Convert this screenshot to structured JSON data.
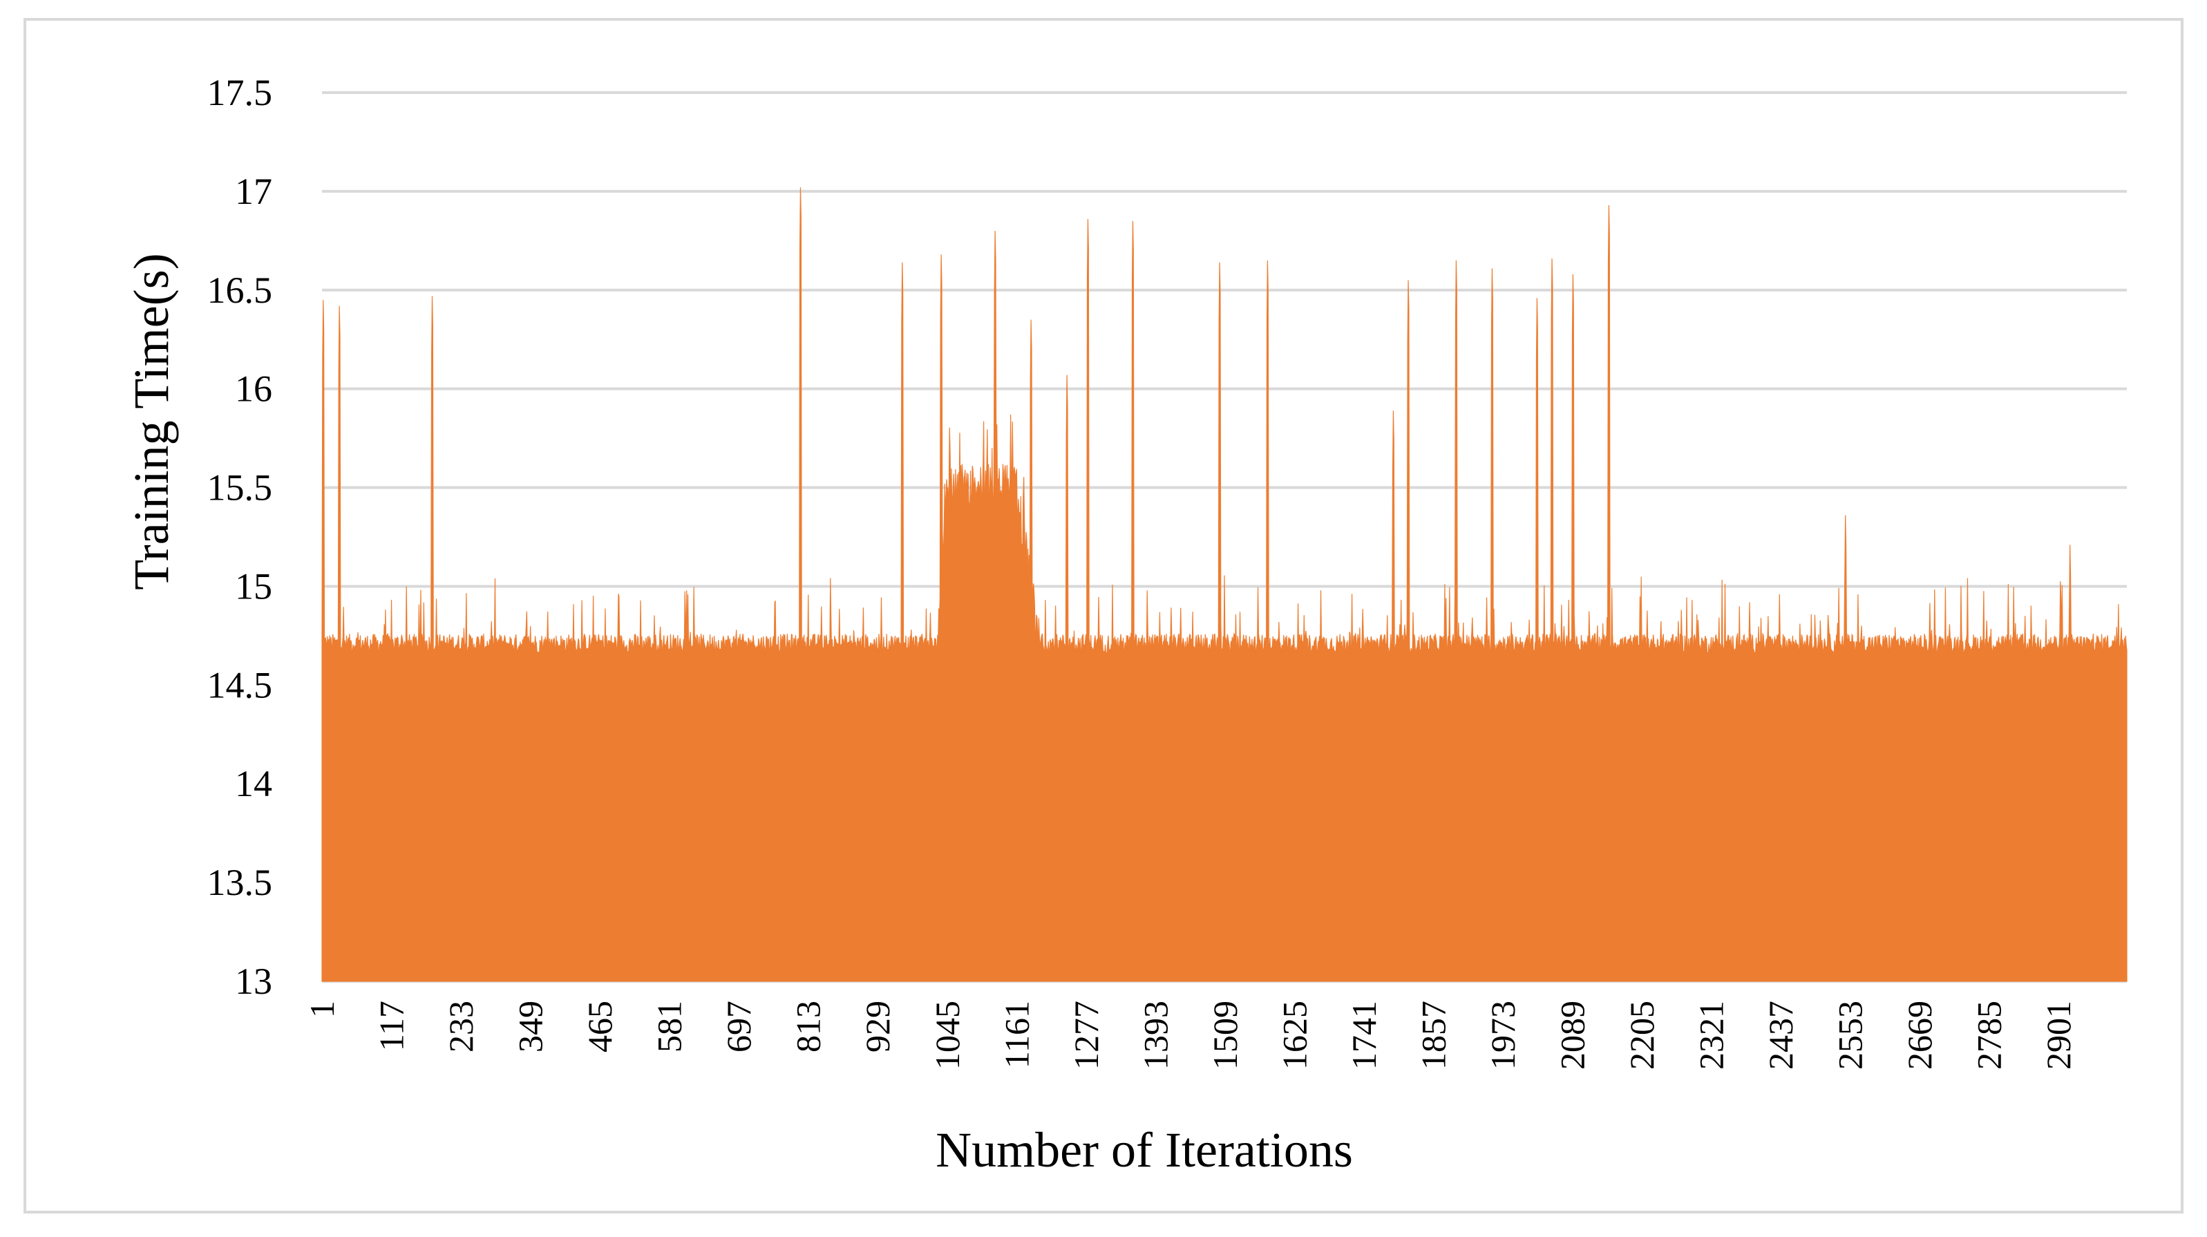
{
  "chart_data": {
    "type": "area",
    "title": "",
    "xlabel": "Number of Iterations",
    "ylabel": "Training Time(s)",
    "ylim": [
      13,
      17.5
    ],
    "yticks": [
      "13",
      "13.5",
      "14",
      "14.5",
      "15",
      "15.5",
      "16",
      "16.5",
      "17",
      "17.5"
    ],
    "xticks": [
      "1",
      "117",
      "233",
      "349",
      "465",
      "581",
      "697",
      "813",
      "929",
      "1045",
      "1161",
      "1277",
      "1393",
      "1509",
      "1625",
      "1741",
      "1857",
      "1973",
      "2089",
      "2205",
      "2321",
      "2437",
      "2553",
      "2669",
      "2785",
      "2901"
    ],
    "x_range": [
      1,
      3015
    ],
    "grid": true,
    "legend": "none",
    "baseline_typical": 14.7,
    "elevated_region": {
      "x_start": 1030,
      "x_end": 1200,
      "typical": 15.5
    },
    "spikes": [
      {
        "x": 3,
        "y": 16.45
      },
      {
        "x": 30,
        "y": 16.42
      },
      {
        "x": 185,
        "y": 16.47
      },
      {
        "x": 800,
        "y": 17.02
      },
      {
        "x": 970,
        "y": 16.64
      },
      {
        "x": 1035,
        "y": 16.68
      },
      {
        "x": 1125,
        "y": 16.8
      },
      {
        "x": 1185,
        "y": 16.35
      },
      {
        "x": 1245,
        "y": 16.07
      },
      {
        "x": 1280,
        "y": 16.86
      },
      {
        "x": 1355,
        "y": 16.85
      },
      {
        "x": 1500,
        "y": 16.64
      },
      {
        "x": 1580,
        "y": 16.65
      },
      {
        "x": 1790,
        "y": 15.89
      },
      {
        "x": 1815,
        "y": 16.55
      },
      {
        "x": 1895,
        "y": 16.65
      },
      {
        "x": 1955,
        "y": 16.61
      },
      {
        "x": 2030,
        "y": 16.46
      },
      {
        "x": 2055,
        "y": 16.66
      },
      {
        "x": 2090,
        "y": 16.58
      },
      {
        "x": 2150,
        "y": 16.93
      },
      {
        "x": 2545,
        "y": 15.36
      },
      {
        "x": 2920,
        "y": 15.21
      }
    ],
    "color": "#ED7D31",
    "gridline_color": "#d9d9d9"
  }
}
